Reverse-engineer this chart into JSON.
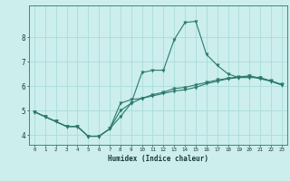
{
  "xlabel": "Humidex (Indice chaleur)",
  "bg_color": "#cceeed",
  "line_color": "#2a7a6a",
  "grid_color": "#aadcdc",
  "x_ticks": [
    0,
    1,
    2,
    3,
    4,
    5,
    6,
    7,
    8,
    9,
    10,
    11,
    12,
    13,
    14,
    15,
    16,
    17,
    18,
    19,
    20,
    21,
    22,
    23
  ],
  "ylim": [
    3.6,
    9.3
  ],
  "xlim": [
    -0.5,
    23.5
  ],
  "line1_y": [
    4.95,
    4.75,
    4.55,
    4.35,
    4.35,
    3.95,
    3.95,
    4.25,
    5.3,
    5.45,
    5.5,
    5.6,
    5.7,
    5.8,
    5.85,
    5.95,
    6.1,
    6.2,
    6.3,
    6.35,
    6.4,
    6.3,
    6.2,
    6.05
  ],
  "line2_y": [
    4.95,
    4.75,
    4.55,
    4.35,
    4.35,
    3.95,
    3.95,
    4.25,
    4.75,
    5.3,
    6.55,
    6.65,
    6.65,
    7.9,
    8.6,
    8.65,
    7.3,
    6.85,
    6.5,
    6.35,
    6.35,
    6.35,
    6.2,
    6.05
  ],
  "line3_y": [
    4.95,
    4.75,
    4.55,
    4.35,
    4.35,
    3.95,
    3.95,
    4.25,
    5.0,
    5.3,
    5.5,
    5.65,
    5.75,
    5.9,
    5.95,
    6.05,
    6.15,
    6.25,
    6.32,
    6.38,
    6.42,
    6.33,
    6.22,
    6.07
  ]
}
